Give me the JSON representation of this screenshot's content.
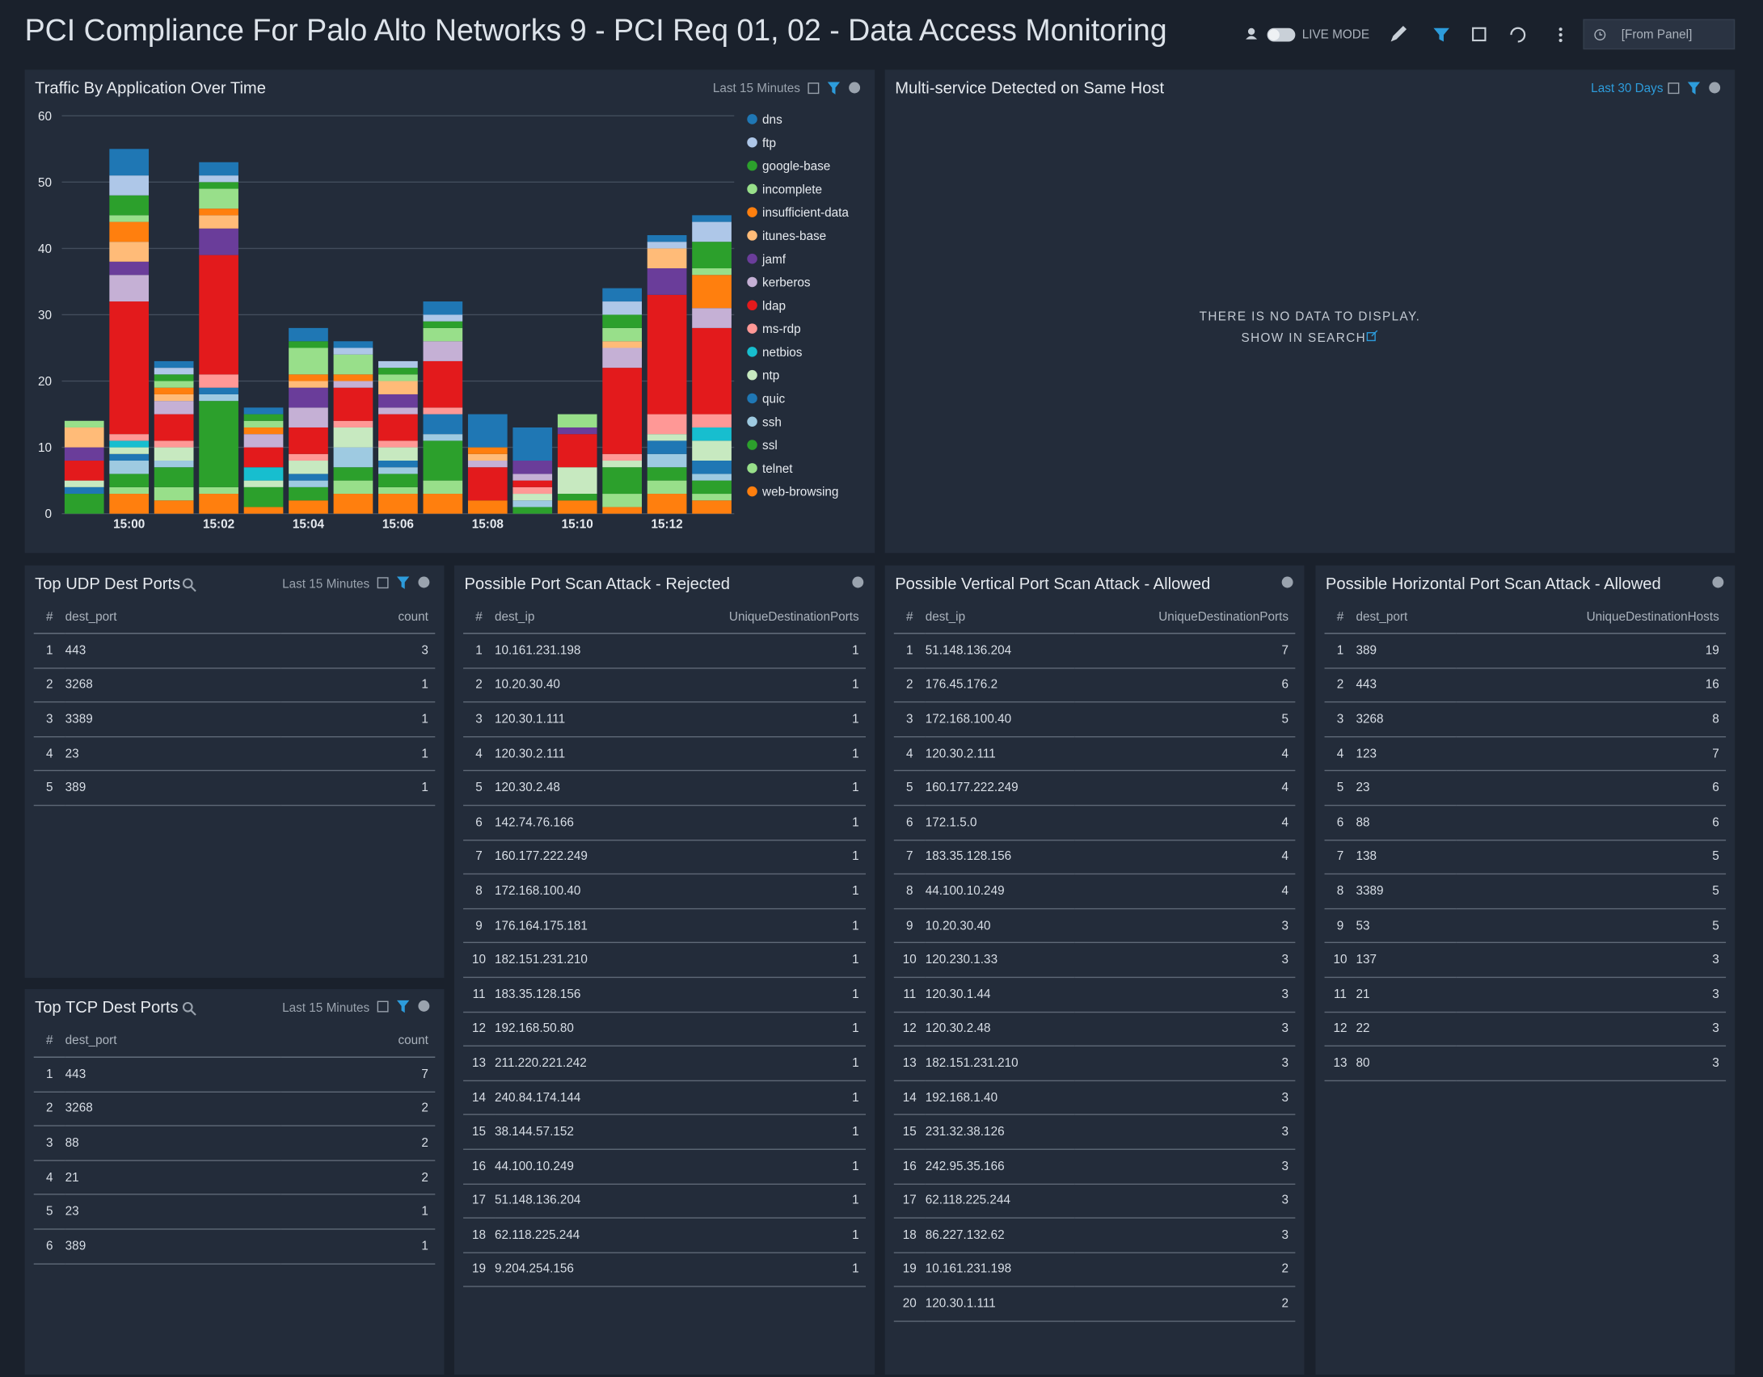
{
  "header": {
    "title": "PCI Compliance For Palo Alto Networks 9 - PCI Req 01, 02 - Data Access Monitoring",
    "live_mode": "LIVE MODE",
    "time_range": "[From Panel]"
  },
  "chart_data": {
    "type": "bar",
    "stacked": true,
    "title": "Traffic By Application Over Time",
    "time_range": "Last 15 Minutes",
    "categories": [
      null,
      "15:00",
      null,
      "15:02",
      null,
      "15:04",
      null,
      "15:06",
      null,
      "15:08",
      null,
      "15:10",
      null,
      "15:12",
      null
    ],
    "ylim": [
      0,
      60
    ],
    "yticks": [
      0,
      10,
      20,
      30,
      40,
      50,
      60
    ],
    "grid": true,
    "legend": "right",
    "series": [
      {
        "name": "dns",
        "color": "#1f77b4",
        "values": [
          0,
          4,
          1,
          2,
          1,
          2,
          1,
          0,
          2,
          5,
          5,
          0,
          2,
          1,
          1
        ]
      },
      {
        "name": "ftp",
        "color": "#aec7e8",
        "values": [
          0,
          3,
          1,
          1,
          0,
          0,
          1,
          1,
          1,
          0,
          0,
          0,
          2,
          1,
          3
        ]
      },
      {
        "name": "google-base",
        "color": "#2ca02c",
        "values": [
          0,
          3,
          1,
          1,
          1,
          1,
          0,
          1,
          1,
          0,
          0,
          0,
          2,
          0,
          4
        ]
      },
      {
        "name": "incomplete",
        "color": "#98df8a",
        "values": [
          1,
          1,
          1,
          3,
          1,
          4,
          3,
          1,
          2,
          0,
          0,
          2,
          2,
          0,
          1
        ]
      },
      {
        "name": "insufficient-data",
        "color": "#ff7f0e",
        "values": [
          0,
          3,
          1,
          1,
          1,
          1,
          1,
          0,
          0,
          1,
          0,
          0,
          0,
          0,
          5
        ]
      },
      {
        "name": "itunes-base",
        "color": "#ffbb78",
        "values": [
          3,
          3,
          1,
          2,
          0,
          1,
          0,
          2,
          0,
          1,
          0,
          0,
          1,
          3,
          0
        ]
      },
      {
        "name": "jamf",
        "color": "#6a3d9a",
        "values": [
          2,
          2,
          0,
          4,
          0,
          3,
          0,
          2,
          0,
          0,
          2,
          1,
          0,
          4,
          0
        ]
      },
      {
        "name": "kerberos",
        "color": "#c5b0d5",
        "values": [
          0,
          4,
          2,
          0,
          2,
          3,
          1,
          1,
          3,
          1,
          1,
          0,
          3,
          0,
          3
        ]
      },
      {
        "name": "ldap",
        "color": "#e31a1c",
        "values": [
          3,
          20,
          4,
          18,
          3,
          4,
          5,
          4,
          7,
          5,
          1,
          5,
          13,
          18,
          13
        ]
      },
      {
        "name": "ms-rdp",
        "color": "#ff9896",
        "values": [
          0,
          1,
          1,
          2,
          0,
          1,
          1,
          1,
          1,
          0,
          1,
          0,
          1,
          3,
          2
        ]
      },
      {
        "name": "netbios",
        "color": "#17becf",
        "values": [
          0,
          1,
          0,
          0,
          2,
          0,
          0,
          0,
          0,
          0,
          0,
          0,
          0,
          0,
          2
        ]
      },
      {
        "name": "ntp",
        "color": "#c7e9c0",
        "values": [
          1,
          1,
          2,
          0,
          1,
          2,
          3,
          2,
          0,
          0,
          1,
          4,
          1,
          1,
          3
        ]
      },
      {
        "name": "quic",
        "color": "#1f77b4",
        "values": [
          1,
          1,
          0,
          1,
          0,
          1,
          0,
          1,
          3,
          0,
          0,
          0,
          0,
          2,
          2
        ]
      },
      {
        "name": "ssh",
        "color": "#9ecae1",
        "values": [
          0,
          2,
          1,
          1,
          0,
          1,
          3,
          1,
          1,
          0,
          1,
          0,
          0,
          2,
          1
        ]
      },
      {
        "name": "ssl",
        "color": "#2ca02c",
        "values": [
          3,
          2,
          3,
          13,
          3,
          2,
          2,
          2,
          6,
          0,
          1,
          1,
          4,
          2,
          2
        ]
      },
      {
        "name": "telnet",
        "color": "#98df8a",
        "values": [
          0,
          1,
          2,
          1,
          0,
          0,
          2,
          1,
          2,
          0,
          0,
          0,
          2,
          2,
          1
        ]
      },
      {
        "name": "web-browsing",
        "color": "#ff7f0e",
        "values": [
          0,
          3,
          2,
          3,
          1,
          2,
          3,
          3,
          3,
          2,
          0,
          2,
          1,
          3,
          2
        ]
      }
    ]
  },
  "multi_service": {
    "title": "Multi-service Detected on Same Host",
    "time_range": "Last 30 Days",
    "message": "THERE IS NO DATA TO DISPLAY.",
    "link": "SHOW IN SEARCH"
  },
  "tables": [
    {
      "title": "Top UDP Dest Ports",
      "time_range": "Last 15 Minutes",
      "columns": [
        "#",
        "dest_port",
        "count"
      ],
      "rows": [
        [
          1,
          443,
          3
        ],
        [
          2,
          3268,
          1
        ],
        [
          3,
          3389,
          1
        ],
        [
          4,
          23,
          1
        ],
        [
          5,
          389,
          1
        ]
      ]
    },
    {
      "title": "Top TCP Dest Ports",
      "time_range": "Last 15 Minutes",
      "columns": [
        "#",
        "dest_port",
        "count"
      ],
      "rows": [
        [
          1,
          443,
          7
        ],
        [
          2,
          3268,
          2
        ],
        [
          3,
          88,
          2
        ],
        [
          4,
          21,
          2
        ],
        [
          5,
          23,
          1
        ],
        [
          6,
          389,
          1
        ]
      ]
    },
    {
      "title": "Possible Port Scan Attack - Rejected",
      "columns": [
        "#",
        "dest_ip",
        "UniqueDestinationPorts"
      ],
      "rows": [
        [
          1,
          "10.161.231.198",
          1
        ],
        [
          2,
          "10.20.30.40",
          1
        ],
        [
          3,
          "120.30.1.111",
          1
        ],
        [
          4,
          "120.30.2.111",
          1
        ],
        [
          5,
          "120.30.2.48",
          1
        ],
        [
          6,
          "142.74.76.166",
          1
        ],
        [
          7,
          "160.177.222.249",
          1
        ],
        [
          8,
          "172.168.100.40",
          1
        ],
        [
          9,
          "176.164.175.181",
          1
        ],
        [
          10,
          "182.151.231.210",
          1
        ],
        [
          11,
          "183.35.128.156",
          1
        ],
        [
          12,
          "192.168.50.80",
          1
        ],
        [
          13,
          "211.220.221.242",
          1
        ],
        [
          14,
          "240.84.174.144",
          1
        ],
        [
          15,
          "38.144.57.152",
          1
        ],
        [
          16,
          "44.100.10.249",
          1
        ],
        [
          17,
          "51.148.136.204",
          1
        ],
        [
          18,
          "62.118.225.244",
          1
        ],
        [
          19,
          "9.204.254.156",
          1
        ]
      ]
    },
    {
      "title": "Possible Vertical Port Scan Attack - Allowed",
      "columns": [
        "#",
        "dest_ip",
        "UniqueDestinationPorts"
      ],
      "rows": [
        [
          1,
          "51.148.136.204",
          7
        ],
        [
          2,
          "176.45.176.2",
          6
        ],
        [
          3,
          "172.168.100.40",
          5
        ],
        [
          4,
          "120.30.2.111",
          4
        ],
        [
          5,
          "160.177.222.249",
          4
        ],
        [
          6,
          "172.1.5.0",
          4
        ],
        [
          7,
          "183.35.128.156",
          4
        ],
        [
          8,
          "44.100.10.249",
          4
        ],
        [
          9,
          "10.20.30.40",
          3
        ],
        [
          10,
          "120.230.1.33",
          3
        ],
        [
          11,
          "120.30.1.44",
          3
        ],
        [
          12,
          "120.30.2.48",
          3
        ],
        [
          13,
          "182.151.231.210",
          3
        ],
        [
          14,
          "192.168.1.40",
          3
        ],
        [
          15,
          "231.32.38.126",
          3
        ],
        [
          16,
          "242.95.35.166",
          3
        ],
        [
          17,
          "62.118.225.244",
          3
        ],
        [
          18,
          "86.227.132.62",
          3
        ],
        [
          19,
          "10.161.231.198",
          2
        ],
        [
          20,
          "120.30.1.111",
          2
        ]
      ]
    },
    {
      "title": "Possible Horizontal Port Scan Attack - Allowed",
      "columns": [
        "#",
        "dest_port",
        "UniqueDestinationHosts"
      ],
      "rows": [
        [
          1,
          389,
          19
        ],
        [
          2,
          443,
          16
        ],
        [
          3,
          3268,
          8
        ],
        [
          4,
          123,
          7
        ],
        [
          5,
          23,
          6
        ],
        [
          6,
          88,
          6
        ],
        [
          7,
          138,
          5
        ],
        [
          8,
          3389,
          5
        ],
        [
          9,
          53,
          5
        ],
        [
          10,
          137,
          3
        ],
        [
          11,
          21,
          3
        ],
        [
          12,
          22,
          3
        ],
        [
          13,
          80,
          3
        ]
      ]
    }
  ]
}
